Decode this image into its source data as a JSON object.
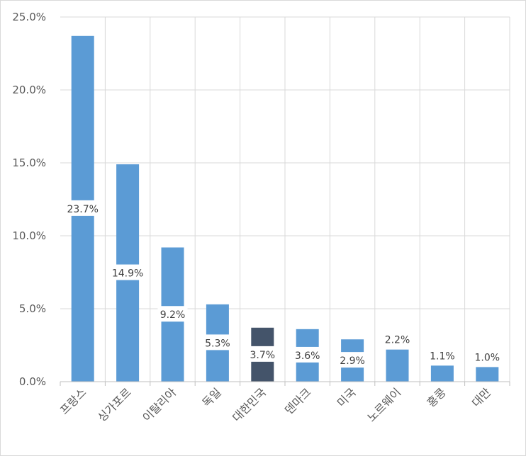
{
  "chart_data": {
    "type": "bar",
    "categories": [
      "프랑스",
      "싱가포르",
      "이탈리아",
      "독일",
      "대한민국",
      "덴마크",
      "미국",
      "노르웨이",
      "홍콩",
      "대만"
    ],
    "values": [
      23.7,
      14.9,
      9.2,
      5.3,
      3.7,
      3.6,
      2.9,
      2.2,
      1.1,
      1.0
    ],
    "data_labels": [
      "23.7%",
      "14.9%",
      "9.2%",
      "5.3%",
      "3.7%",
      "3.6%",
      "2.9%",
      "2.2%",
      "1.1%",
      "1.0%"
    ],
    "yticks": [
      "0.0%",
      "5.0%",
      "10.0%",
      "15.0%",
      "20.0%",
      "25.0%"
    ],
    "ylim": [
      0,
      25
    ],
    "title": "",
    "xlabel": "",
    "ylabel": "",
    "grid": true,
    "legend": "none",
    "colors": {
      "default": "#5b9bd5",
      "highlight": "#44546a",
      "highlight_category": "대한민국"
    }
  }
}
